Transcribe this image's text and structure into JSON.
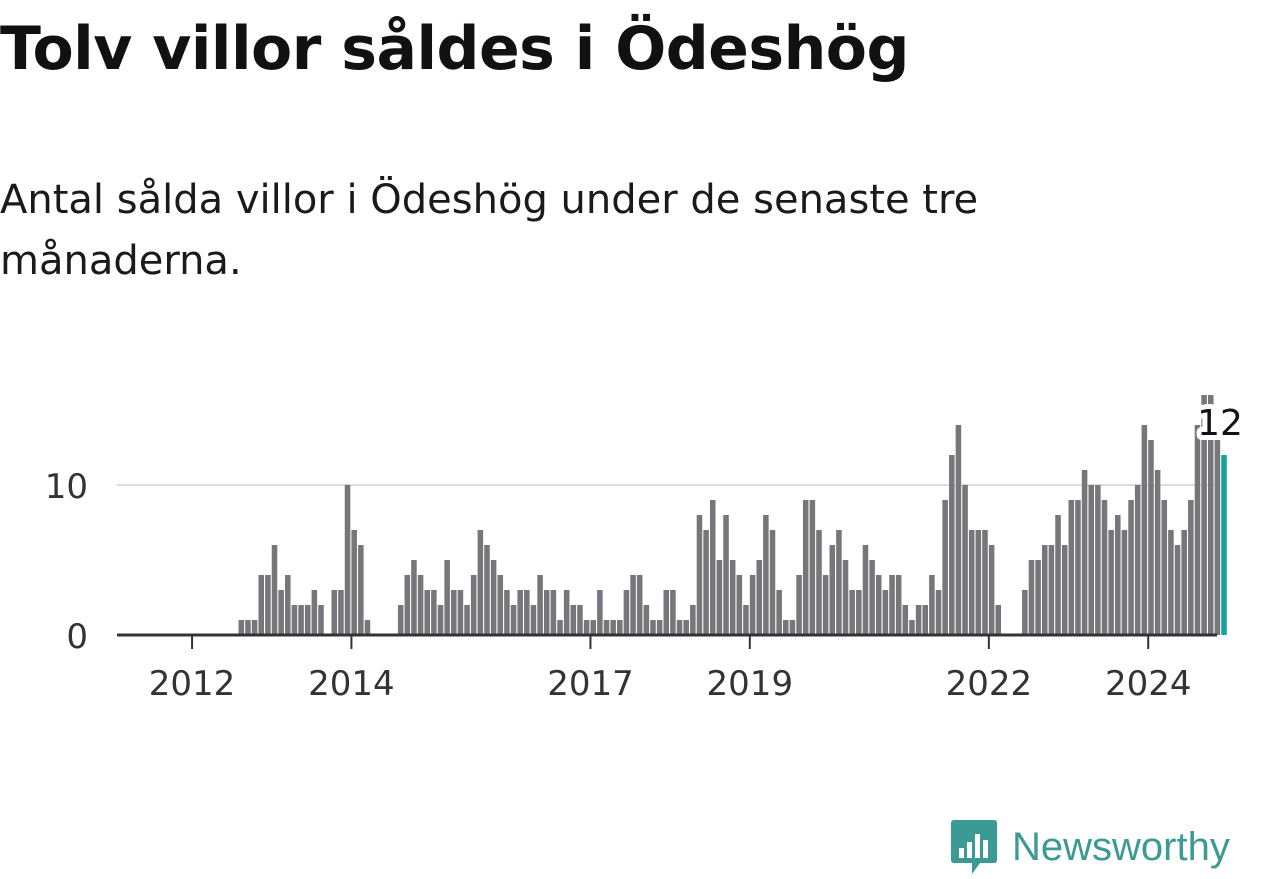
{
  "title": "Tolv villor såldes i Ödeshög",
  "subtitle": "Antal sålda villor i Ödeshög under de senaste tre månaderna.",
  "brand": {
    "name": "Newsworthy",
    "color": "#3b9a94"
  },
  "colors": {
    "bar": "#77767b",
    "highlight": "#16a39a",
    "grid": "#dddddd",
    "axis": "#333333"
  },
  "chart_data": {
    "type": "bar",
    "title": "Tolv villor såldes i Ödeshög",
    "subtitle": "Antal sålda villor i Ödeshög under de senaste tre månaderna.",
    "xlabel": "",
    "ylabel": "",
    "x_start": "2011-09",
    "x_end": "2024-08",
    "x_ticks": [
      "2012",
      "2014",
      "2017",
      "2019",
      "2022",
      "2024"
    ],
    "y_ticks": [
      0,
      10
    ],
    "ylim": [
      0,
      16
    ],
    "grid": true,
    "highlight_label": "12",
    "series": [
      {
        "values": [
          0,
          0,
          0,
          0,
          0,
          0,
          0,
          0,
          0,
          0,
          0,
          1,
          1,
          1,
          4,
          4,
          6,
          3,
          4,
          2,
          2,
          2,
          3,
          2,
          0,
          3,
          3,
          10,
          7,
          6,
          1,
          0,
          0,
          0,
          0,
          2,
          4,
          5,
          4,
          3,
          3,
          2,
          5,
          3,
          3,
          2,
          4,
          7,
          6,
          5,
          4,
          3,
          2,
          3,
          3,
          2,
          4,
          3,
          3,
          1,
          3,
          2,
          2,
          1,
          1,
          3,
          1,
          1,
          1,
          3,
          4,
          4,
          2,
          1,
          1,
          3,
          3,
          1,
          1,
          2,
          8,
          7,
          9,
          5,
          8,
          5,
          4,
          2,
          4,
          5,
          8,
          7,
          3,
          1,
          1,
          4,
          9,
          9,
          7,
          4,
          6,
          7,
          5,
          3,
          3,
          6,
          5,
          4,
          3,
          4,
          4,
          2,
          1,
          2,
          2,
          4,
          3,
          9,
          12,
          14,
          10,
          7,
          7,
          7,
          6,
          2,
          0,
          0,
          0,
          3,
          5,
          5,
          6,
          6,
          8,
          6,
          9,
          9,
          11,
          10,
          10,
          9,
          7,
          8,
          7,
          9,
          10,
          14,
          13,
          11,
          9,
          7,
          6,
          7,
          9,
          14,
          16,
          16,
          13,
          12
        ]
      }
    ]
  }
}
